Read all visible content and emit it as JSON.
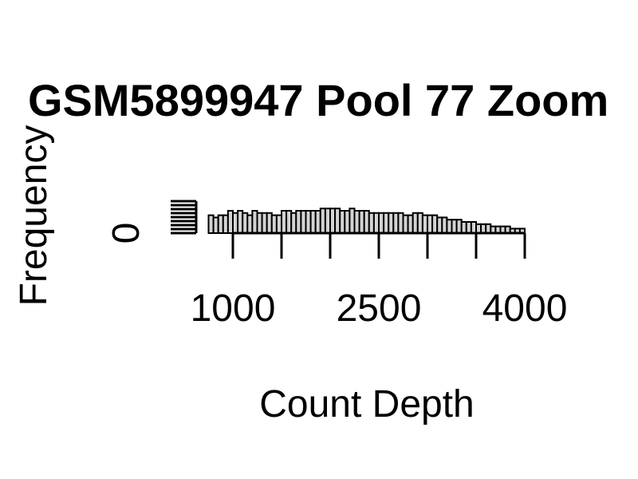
{
  "chart_data": {
    "type": "bar",
    "title": "GSM5899947 Pool 77 Zoom",
    "xlabel": "Count Depth",
    "ylabel": "Frequency",
    "x_ticks": [
      1000,
      1500,
      2000,
      2500,
      3000,
      3500,
      4000
    ],
    "x_tick_labels": [
      "1000",
      "2500",
      "4000"
    ],
    "y_tick_labels": [
      "0"
    ],
    "xlim": [
      1000,
      4000
    ],
    "bin_width": 50,
    "bin_start": 750,
    "values": [
      8,
      7,
      8,
      8,
      10,
      9,
      10,
      9,
      8,
      10,
      9,
      9,
      9,
      8,
      8,
      10,
      10,
      9,
      10,
      10,
      10,
      10,
      10,
      11,
      11,
      11,
      11,
      10,
      10,
      11,
      10,
      10,
      10,
      9,
      9,
      9,
      9,
      9,
      9,
      9,
      8,
      8,
      9,
      9,
      8,
      8,
      8,
      7,
      7,
      6,
      6,
      6,
      5,
      5,
      5,
      4,
      4,
      4,
      3,
      3,
      3,
      3,
      2,
      2,
      2
    ]
  }
}
